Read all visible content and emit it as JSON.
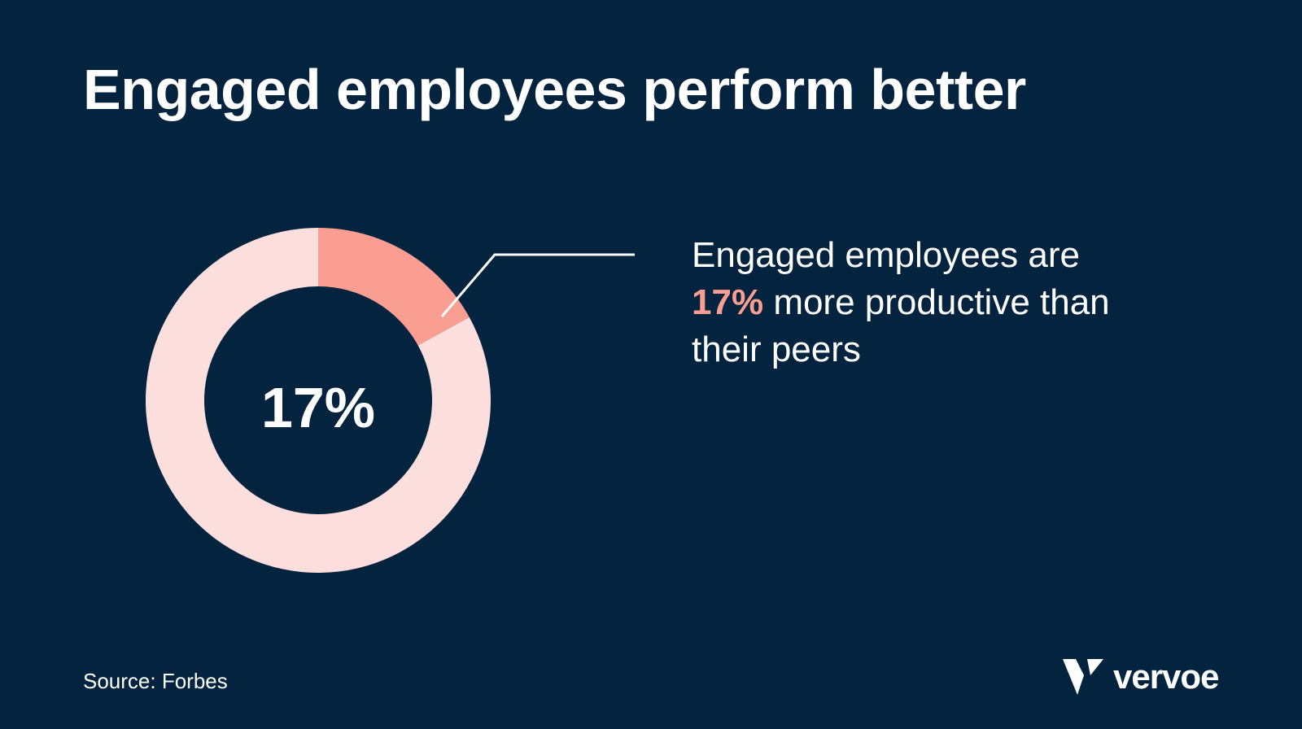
{
  "title": "Engaged employees perform better",
  "chart_data": {
    "type": "pie",
    "slices": [
      {
        "value": 17,
        "color": "#fa9e92"
      },
      {
        "value": 83,
        "color": "#fcdfdc"
      }
    ],
    "center_label": "17%"
  },
  "callout": {
    "line1": "Engaged employees are",
    "highlight": "17%",
    "line2_rest": "more productive than",
    "line3": "their peers"
  },
  "source": "Source: Forbes",
  "logo": {
    "text": "vervoe",
    "icon": "vervoe-logo-icon"
  },
  "colors": {
    "background": "#03233f",
    "accent": "#fa9e92",
    "ring": "#fcdfdc",
    "text": "#ffffff"
  }
}
